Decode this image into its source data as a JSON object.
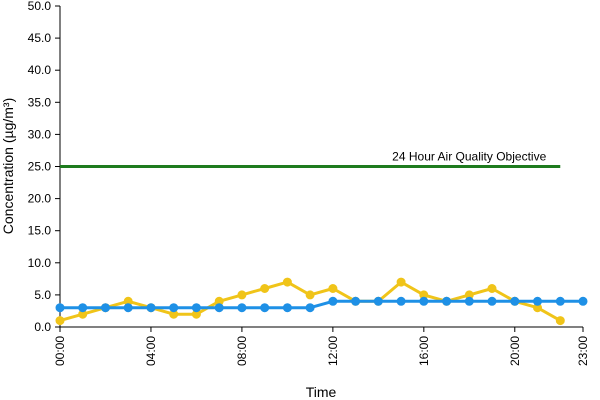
{
  "chart_data": {
    "type": "line",
    "xlabel": "Time",
    "ylabel": "Concentration (µg/m³)",
    "ylim": [
      0,
      50
    ],
    "y_ticks": [
      "0.0",
      "5.0",
      "10.0",
      "15.0",
      "20.0",
      "25.0",
      "30.0",
      "35.0",
      "40.0",
      "45.0",
      "50.0"
    ],
    "x_ticks": [
      "00:00",
      "04:00",
      "08:00",
      "12:00",
      "16:00",
      "20:00",
      "23:00"
    ],
    "x_hours": [
      0,
      1,
      2,
      3,
      4,
      5,
      6,
      7,
      8,
      9,
      10,
      11,
      12,
      13,
      14,
      15,
      16,
      17,
      18,
      19,
      20,
      21,
      22,
      23
    ],
    "objective": {
      "label": "24 Hour Air Quality Objective",
      "value": 25,
      "color": "#1e7b1e"
    },
    "series": [
      {
        "color": "#f0c419",
        "values": [
          1,
          2,
          3,
          4,
          3,
          2,
          2,
          4,
          5,
          6,
          7,
          5,
          6,
          4,
          4,
          7,
          5,
          4,
          5,
          6,
          4,
          3,
          1,
          null
        ]
      },
      {
        "color": "#1e90e6",
        "values": [
          3,
          3,
          3,
          3,
          3,
          3,
          3,
          3,
          3,
          3,
          3,
          3,
          4,
          4,
          4,
          4,
          4,
          4,
          4,
          4,
          4,
          4,
          4,
          4
        ]
      }
    ]
  }
}
